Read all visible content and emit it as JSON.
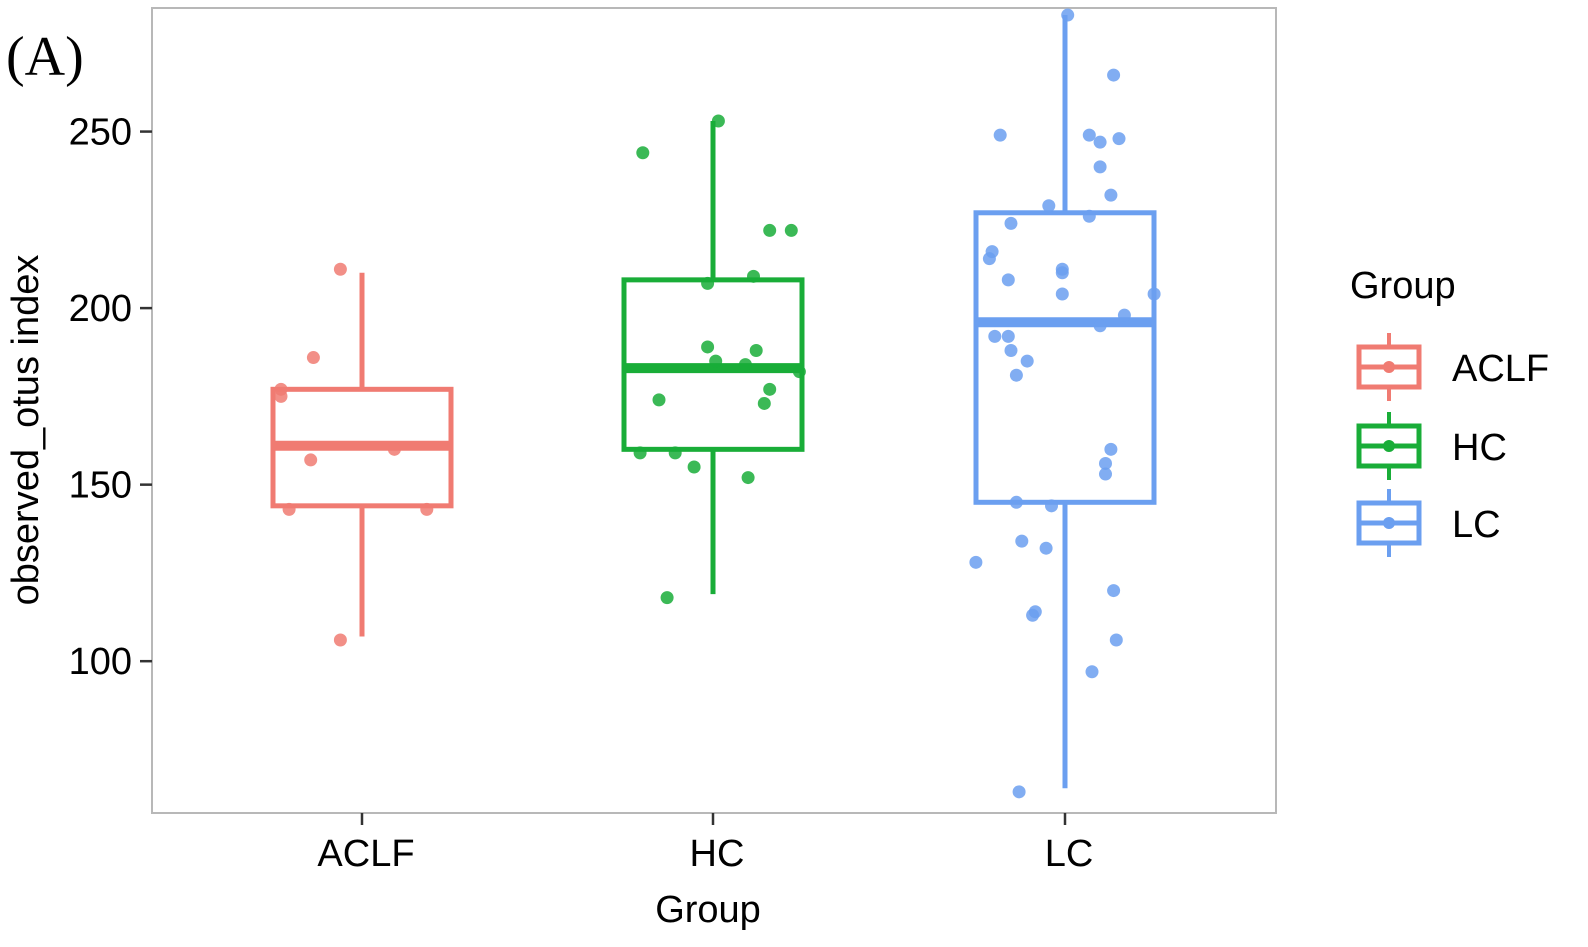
{
  "panel_label": "(A)",
  "chart_data": {
    "type": "box",
    "title": "",
    "xlabel": "Group",
    "ylabel": "observed_otus index",
    "categories": [
      "ACLF",
      "HC",
      "LC"
    ],
    "ylim": [
      57,
      285
    ],
    "yticks": [
      100,
      150,
      200,
      250
    ],
    "grid": false,
    "legend": {
      "title": "Group",
      "placement": "right",
      "entries": [
        "ACLF",
        "HC",
        "LC"
      ]
    },
    "colors": {
      "ACLF": "#f07b72",
      "HC": "#19ad38",
      "LC": "#6b9ff0"
    },
    "series": [
      {
        "name": "ACLF",
        "box": {
          "min": 107,
          "q1": 144,
          "median": 161,
          "q3": 177,
          "max": 210
        },
        "points": [
          {
            "offset": -0.08,
            "y": 211
          },
          {
            "offset": -0.18,
            "y": 186
          },
          {
            "offset": -0.3,
            "y": 177
          },
          {
            "offset": -0.3,
            "y": 175
          },
          {
            "offset": -0.19,
            "y": 157
          },
          {
            "offset": 0.12,
            "y": 160
          },
          {
            "offset": -0.27,
            "y": 143
          },
          {
            "offset": 0.24,
            "y": 143
          },
          {
            "offset": -0.08,
            "y": 106
          }
        ]
      },
      {
        "name": "HC",
        "box": {
          "min": 119,
          "q1": 160,
          "median": 183,
          "q3": 208,
          "max": 253
        },
        "points": [
          {
            "offset": 0.02,
            "y": 253
          },
          {
            "offset": -0.26,
            "y": 244
          },
          {
            "offset": 0.21,
            "y": 222
          },
          {
            "offset": 0.29,
            "y": 222
          },
          {
            "offset": 0.15,
            "y": 209
          },
          {
            "offset": -0.02,
            "y": 207
          },
          {
            "offset": -0.02,
            "y": 189
          },
          {
            "offset": 0.16,
            "y": 188
          },
          {
            "offset": 0.01,
            "y": 185
          },
          {
            "offset": 0.12,
            "y": 184
          },
          {
            "offset": 0.32,
            "y": 182
          },
          {
            "offset": 0.21,
            "y": 177
          },
          {
            "offset": -0.2,
            "y": 174
          },
          {
            "offset": 0.19,
            "y": 173
          },
          {
            "offset": -0.27,
            "y": 159
          },
          {
            "offset": -0.14,
            "y": 159
          },
          {
            "offset": -0.07,
            "y": 155
          },
          {
            "offset": 0.13,
            "y": 152
          },
          {
            "offset": -0.17,
            "y": 118
          }
        ]
      },
      {
        "name": "LC",
        "box": {
          "min": 64,
          "q1": 145,
          "median": 196,
          "q3": 227,
          "max": 283
        },
        "points": [
          {
            "offset": 0.01,
            "y": 283
          },
          {
            "offset": 0.18,
            "y": 266
          },
          {
            "offset": -0.24,
            "y": 249
          },
          {
            "offset": 0.09,
            "y": 249
          },
          {
            "offset": 0.13,
            "y": 247
          },
          {
            "offset": 0.2,
            "y": 248
          },
          {
            "offset": 0.13,
            "y": 240
          },
          {
            "offset": 0.17,
            "y": 232
          },
          {
            "offset": -0.06,
            "y": 229
          },
          {
            "offset": 0.09,
            "y": 226
          },
          {
            "offset": -0.2,
            "y": 224
          },
          {
            "offset": -0.27,
            "y": 216
          },
          {
            "offset": -0.28,
            "y": 214
          },
          {
            "offset": -0.01,
            "y": 211
          },
          {
            "offset": -0.01,
            "y": 210
          },
          {
            "offset": -0.21,
            "y": 208
          },
          {
            "offset": -0.01,
            "y": 204
          },
          {
            "offset": 0.33,
            "y": 204
          },
          {
            "offset": 0.22,
            "y": 198
          },
          {
            "offset": 0.13,
            "y": 195
          },
          {
            "offset": -0.21,
            "y": 192
          },
          {
            "offset": -0.26,
            "y": 192
          },
          {
            "offset": -0.2,
            "y": 188
          },
          {
            "offset": -0.14,
            "y": 185
          },
          {
            "offset": -0.18,
            "y": 181
          },
          {
            "offset": 0.17,
            "y": 160
          },
          {
            "offset": 0.15,
            "y": 156
          },
          {
            "offset": 0.15,
            "y": 153
          },
          {
            "offset": -0.18,
            "y": 145
          },
          {
            "offset": -0.05,
            "y": 144
          },
          {
            "offset": -0.16,
            "y": 134
          },
          {
            "offset": -0.07,
            "y": 132
          },
          {
            "offset": -0.33,
            "y": 128
          },
          {
            "offset": 0.18,
            "y": 120
          },
          {
            "offset": -0.11,
            "y": 114
          },
          {
            "offset": -0.12,
            "y": 113
          },
          {
            "offset": 0.19,
            "y": 106
          },
          {
            "offset": 0.1,
            "y": 97
          },
          {
            "offset": -0.17,
            "y": 63
          }
        ]
      }
    ]
  }
}
